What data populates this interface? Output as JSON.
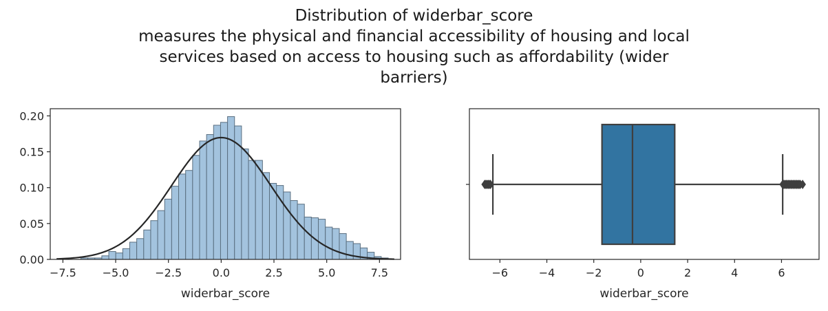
{
  "title": {
    "line1": "Distribution of widerbar_score",
    "line2": "measures the physical and financial accessibility of housing and local",
    "line3": "services based on access to housing such as affordability (wider",
    "line4": "barriers)"
  },
  "chart_data": [
    {
      "type": "bar",
      "subtype": "histogram with fitted normal curve",
      "xlabel": "widerbar_score",
      "ylabel": "",
      "xlim": [
        -8.1,
        8.5
      ],
      "ylim": [
        0,
        0.21
      ],
      "x_ticks": [
        -7.5,
        -5.0,
        -2.5,
        0.0,
        2.5,
        5.0,
        7.5
      ],
      "x_tick_labels": [
        "−7.5",
        "−5.0",
        "−2.5",
        "0.0",
        "2.5",
        "5.0",
        "7.5"
      ],
      "y_ticks": [
        0.0,
        0.05,
        0.1,
        0.15,
        0.2
      ],
      "y_tick_labels": [
        "0.00",
        "0.05",
        "0.10",
        "0.15",
        "0.20"
      ],
      "bin_edges_start": -6.65,
      "bin_width": 0.331,
      "values": [
        0.002,
        0.002,
        0.002,
        0.005,
        0.011,
        0.009,
        0.015,
        0.024,
        0.029,
        0.041,
        0.054,
        0.068,
        0.084,
        0.102,
        0.119,
        0.124,
        0.145,
        0.165,
        0.174,
        0.187,
        0.191,
        0.199,
        0.186,
        0.154,
        0.138,
        0.138,
        0.121,
        0.106,
        0.103,
        0.094,
        0.082,
        0.077,
        0.059,
        0.058,
        0.056,
        0.045,
        0.043,
        0.036,
        0.025,
        0.022,
        0.016,
        0.01,
        0.004,
        0.002
      ],
      "bar_color": "#a3c3de",
      "bar_edge_color": "#5a6f80",
      "fit_curve": {
        "distribution": "normal",
        "mean": 0.0,
        "std": 2.35,
        "x_range": [
          -7.8,
          8.2
        ],
        "color": "#262626"
      }
    },
    {
      "type": "box",
      "xlabel": "widerbar_score",
      "ylabel": "",
      "xlim": [
        -7.3,
        7.6
      ],
      "x_ticks": [
        -6,
        -4,
        -2,
        0,
        2,
        4,
        6
      ],
      "x_tick_labels": [
        "−6",
        "−4",
        "−2",
        "0",
        "2",
        "4",
        "6"
      ],
      "whisker_low": -6.3,
      "q1": -1.65,
      "median": -0.35,
      "q3": 1.45,
      "whisker_high": 6.05,
      "outliers_low": [
        -6.65,
        -6.6,
        -6.55,
        -6.5,
        -6.45,
        -6.4
      ],
      "outliers_high": [
        6.05,
        6.1,
        6.15,
        6.2,
        6.25,
        6.3,
        6.35,
        6.4,
        6.45,
        6.5,
        6.55,
        6.6,
        6.65,
        6.7,
        6.75,
        6.8,
        6.9
      ],
      "box_color": "#3274a1",
      "line_color": "#3f3f3f"
    }
  ]
}
